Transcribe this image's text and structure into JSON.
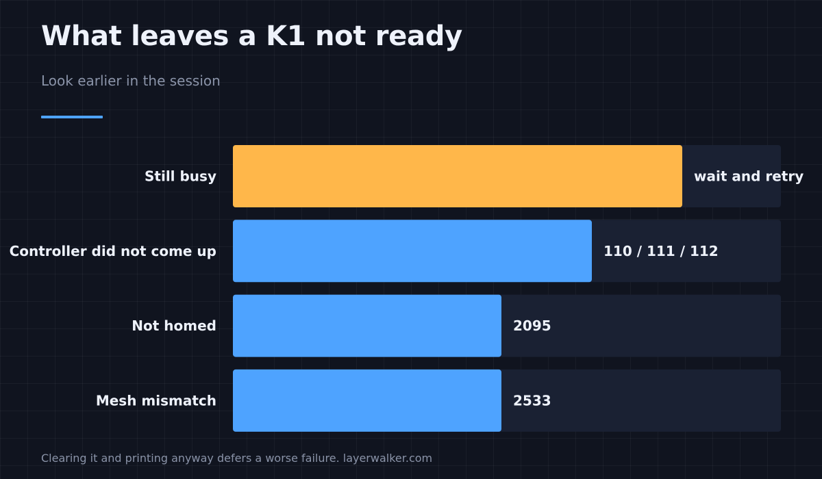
{
  "title": "What leaves a K1 not ready",
  "subtitle": "Look earlier in the session",
  "footer": "Clearing it and printing anyway defers a worse failure. layerwalker.com",
  "colors": {
    "background": "#10141f",
    "track": "#1a2133",
    "accent": "#4ea3ff",
    "highlight": "#ffb74a",
    "label": "#eef2fb"
  },
  "chart_data": {
    "type": "bar",
    "orientation": "horizontal",
    "categories": [
      "Still busy",
      "Controller did not come up",
      "Not homed",
      "Mesh mismatch"
    ],
    "values": [
      0.82,
      0.655,
      0.49,
      0.49
    ],
    "value_labels": [
      "wait and retry",
      "110 / 111 / 112",
      "2095",
      "2533"
    ],
    "highlight_index": 0,
    "xlim": [
      0,
      1
    ],
    "grid": false,
    "legend": "none"
  }
}
